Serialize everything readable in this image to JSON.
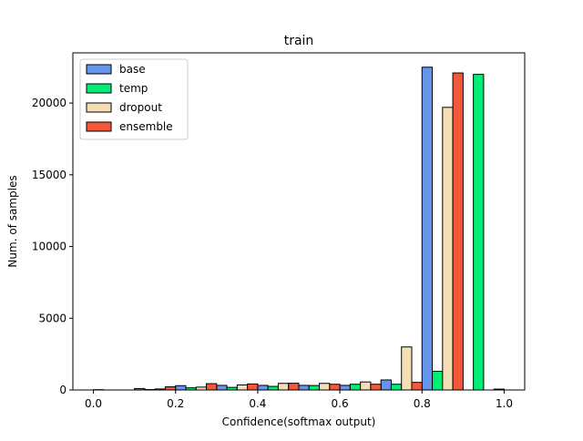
{
  "chart_data": {
    "type": "bar",
    "title": "train",
    "xlabel": "Confidence(softmax output)",
    "ylabel": "Num. of samples",
    "xlim": [
      -0.05,
      1.05
    ],
    "ylim": [
      0,
      23500
    ],
    "xticks": [
      0.0,
      0.2,
      0.4,
      0.6,
      0.8,
      1.0
    ],
    "xtick_labels": [
      "0.0",
      "0.2",
      "0.4",
      "0.6",
      "0.8",
      "1.0"
    ],
    "yticks": [
      0,
      5000,
      10000,
      15000,
      20000
    ],
    "ytick_labels": [
      "0",
      "5000",
      "10000",
      "15000",
      "20000"
    ],
    "bin_edges": [
      0.0,
      0.1,
      0.2,
      0.3,
      0.4,
      0.5,
      0.6,
      0.7,
      0.8,
      0.9,
      1.0
    ],
    "grid": false,
    "legend_position": "top-left",
    "series": [
      {
        "name": "base",
        "color": "#6495ED",
        "values": [
          20,
          100,
          300,
          320,
          320,
          320,
          320,
          700,
          22500,
          0
        ]
      },
      {
        "name": "temp",
        "color": "#00EE76",
        "values": [
          0,
          30,
          150,
          180,
          250,
          310,
          400,
          400,
          1300,
          22000
        ]
      },
      {
        "name": "dropout",
        "color": "#F5DEB3",
        "values": [
          0,
          70,
          200,
          350,
          460,
          460,
          560,
          3000,
          19700,
          0
        ]
      },
      {
        "name": "ensemble",
        "color": "#F4583A",
        "values": [
          0,
          220,
          440,
          420,
          470,
          400,
          400,
          530,
          22100,
          60
        ]
      }
    ]
  }
}
